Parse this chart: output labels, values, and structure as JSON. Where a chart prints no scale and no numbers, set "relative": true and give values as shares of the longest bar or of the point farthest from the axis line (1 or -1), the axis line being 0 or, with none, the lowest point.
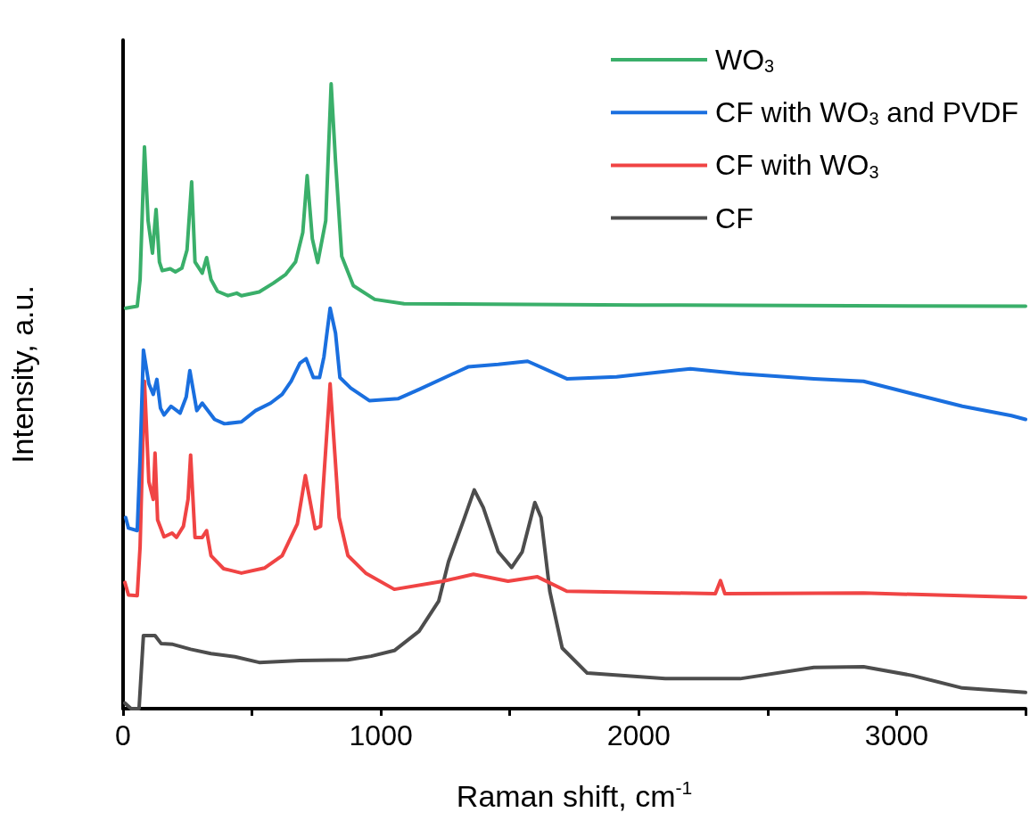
{
  "chart_data": {
    "type": "line",
    "relative": true,
    "xlabel": "Raman shift, cm$^{-1}$",
    "ylabel": "Intensity, a.u.",
    "xlim": [
      0,
      3500
    ],
    "xticks": [
      0,
      {
        "value": 500,
        "label": null
      },
      1000,
      {
        "value": 1500,
        "label": null
      },
      2000,
      {
        "value": 2500,
        "label": null
      },
      3000,
      {
        "value": 3500,
        "label": null
      }
    ],
    "legend": "top right",
    "grid": false,
    "marker": "none",
    "line_style": "solid",
    "series": [
      {
        "name": "WO$_{3}$",
        "color": "#3aaf6a",
        "x": [
          10,
          55,
          66,
          83,
          97,
          114,
          128,
          141,
          152,
          183,
          203,
          228,
          248,
          266,
          279,
          307,
          324,
          341,
          366,
          407,
          441,
          459,
          528,
          583,
          631,
          669,
          697,
          714,
          734,
          755,
          786,
          807,
          824,
          848,
          893,
          976,
          1090,
          2000,
          3500
        ],
        "values": [
          0.641,
          0.644,
          0.687,
          0.899,
          0.781,
          0.729,
          0.799,
          0.715,
          0.701,
          0.704,
          0.699,
          0.705,
          0.734,
          0.843,
          0.715,
          0.697,
          0.722,
          0.687,
          0.668,
          0.661,
          0.665,
          0.661,
          0.667,
          0.681,
          0.695,
          0.715,
          0.762,
          0.853,
          0.752,
          0.714,
          0.781,
          1.0,
          0.876,
          0.724,
          0.677,
          0.655,
          0.648,
          0.646,
          0.644
        ]
      },
      {
        "name": "CF with WO$_{3}$ and PVDF",
        "color": "#1a6fdf",
        "x": [
          10,
          21,
          55,
          66,
          79,
          100,
          117,
          131,
          145,
          159,
          186,
          221,
          245,
          259,
          286,
          307,
          355,
          393,
          459,
          514,
          572,
          617,
          652,
          686,
          710,
          738,
          762,
          779,
          803,
          824,
          841,
          883,
          955,
          1066,
          1148,
          1338,
          1455,
          1569,
          1721,
          1914,
          2200,
          2393,
          2679,
          2872,
          3062,
          3255,
          3445,
          3500
        ],
        "values": [
          0.306,
          0.289,
          0.285,
          0.402,
          0.574,
          0.52,
          0.503,
          0.527,
          0.481,
          0.47,
          0.484,
          0.473,
          0.499,
          0.541,
          0.477,
          0.489,
          0.463,
          0.456,
          0.459,
          0.477,
          0.489,
          0.503,
          0.524,
          0.553,
          0.56,
          0.53,
          0.53,
          0.563,
          0.641,
          0.601,
          0.53,
          0.513,
          0.493,
          0.496,
          0.511,
          0.547,
          0.551,
          0.556,
          0.528,
          0.531,
          0.544,
          0.536,
          0.528,
          0.524,
          0.504,
          0.484,
          0.469,
          0.463
        ]
      },
      {
        "name": "CF with WO$_{3}$",
        "color": "#f04444",
        "x": [
          7,
          21,
          55,
          66,
          83,
          100,
          117,
          124,
          134,
          159,
          190,
          207,
          234,
          252,
          262,
          279,
          307,
          324,
          341,
          390,
          459,
          548,
          617,
          676,
          707,
          745,
          766,
          803,
          838,
          872,
          941,
          1052,
          1241,
          1359,
          1493,
          1607,
          1721,
          2297,
          2317,
          2334,
          2872,
          3500
        ],
        "values": [
          0.202,
          0.182,
          0.181,
          0.259,
          0.524,
          0.363,
          0.335,
          0.409,
          0.302,
          0.275,
          0.281,
          0.274,
          0.292,
          0.335,
          0.406,
          0.274,
          0.274,
          0.285,
          0.245,
          0.224,
          0.217,
          0.225,
          0.245,
          0.296,
          0.373,
          0.288,
          0.292,
          0.52,
          0.306,
          0.245,
          0.217,
          0.191,
          0.204,
          0.215,
          0.204,
          0.211,
          0.188,
          0.184,
          0.205,
          0.184,
          0.185,
          0.178
        ]
      },
      {
        "name": "CF",
        "color": "#4d4d4d",
        "x": [
          7,
          31,
          62,
          79,
          124,
          148,
          193,
          262,
          341,
          434,
          528,
          686,
          872,
          962,
          1052,
          1148,
          1224,
          1262,
          1321,
          1362,
          1397,
          1455,
          1507,
          1548,
          1597,
          1621,
          1655,
          1703,
          1800,
          2103,
          2393,
          2679,
          2872,
          3062,
          3255,
          3500
        ],
        "values": [
          0.009,
          0,
          0,
          0.117,
          0.117,
          0.104,
          0.103,
          0.095,
          0.088,
          0.083,
          0.074,
          0.077,
          0.078,
          0.084,
          0.093,
          0.124,
          0.172,
          0.235,
          0.302,
          0.35,
          0.322,
          0.251,
          0.226,
          0.251,
          0.33,
          0.306,
          0.188,
          0.097,
          0.057,
          0.048,
          0.048,
          0.066,
          0.067,
          0.053,
          0.033,
          0.026
        ]
      }
    ]
  }
}
